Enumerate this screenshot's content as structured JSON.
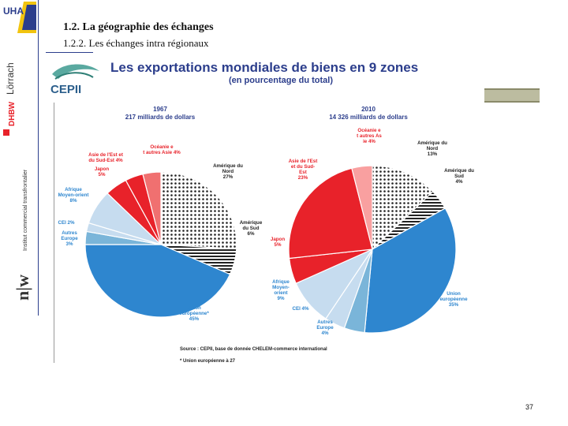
{
  "header": {
    "title": "1.2. La géographie des échanges",
    "subtitle": "1.2.2. Les échanges intra régionaux"
  },
  "sidebar": {
    "uha_logo_text": "UHA",
    "lorrach_text": "Lörrach",
    "dhbw_text": "DHBW",
    "institute_text": "Institut commercial transfrontalier",
    "nuc_text": "n|w"
  },
  "cepii": {
    "logo_text": "CEPII"
  },
  "footer": {
    "page_number": "37"
  },
  "colors": {
    "blue": "#2e86cf",
    "red": "#e8222a",
    "pink": "#f07070",
    "lightblue": "#c6dcef",
    "skyblue": "#7ab5d9",
    "lightred": "#f9a0a0",
    "title_blue": "#2c3e8c"
  },
  "chart_data": [
    {
      "type": "pie",
      "title": "Les exportations mondiales de biens en 9 zones",
      "subtitle": "(en pourcentage du total)",
      "year": "1967",
      "total": "217 milliards de dollars",
      "slices": [
        {
          "label": "Amérique du Nord 27%",
          "value": 27
        },
        {
          "label": "Amérique du Sud 6%",
          "value": 6
        },
        {
          "label": "Union européenne* 45%",
          "value": 45
        },
        {
          "label": "Autres Europe 3%",
          "value": 3
        },
        {
          "label": "CEI 2%",
          "value": 2
        },
        {
          "label": "Afrique Moyen-orient 8%",
          "value": 8
        },
        {
          "label": "Japon 5%",
          "value": 5
        },
        {
          "label": "Asie de l'Est et du Sud-Est 4%",
          "value": 4
        },
        {
          "label": "Océanie et autres Asie 4%",
          "value": 4
        }
      ]
    },
    {
      "type": "pie",
      "year": "2010",
      "total": "14 326 milliards de dollars",
      "slices": [
        {
          "label": "Amérique du Nord 13%",
          "value": 13
        },
        {
          "label": "Amérique du Sud 4%",
          "value": 4
        },
        {
          "label": "Union européenne 35%",
          "value": 35
        },
        {
          "label": "Autres Europe 4%",
          "value": 4
        },
        {
          "label": "CEI 4%",
          "value": 4
        },
        {
          "label": "Afrique Moyen-orient 9%",
          "value": 9
        },
        {
          "label": "Japon 5%",
          "value": 5
        },
        {
          "label": "Asie de l'Est et du Sud-Est 23%",
          "value": 23
        },
        {
          "label": "Océanie et autres Asie 4%",
          "value": 4
        }
      ]
    }
  ],
  "source": "Source : CEPII, base de donnée CHELEM-commerce international",
  "footnote": "* Union européenne à 27"
}
